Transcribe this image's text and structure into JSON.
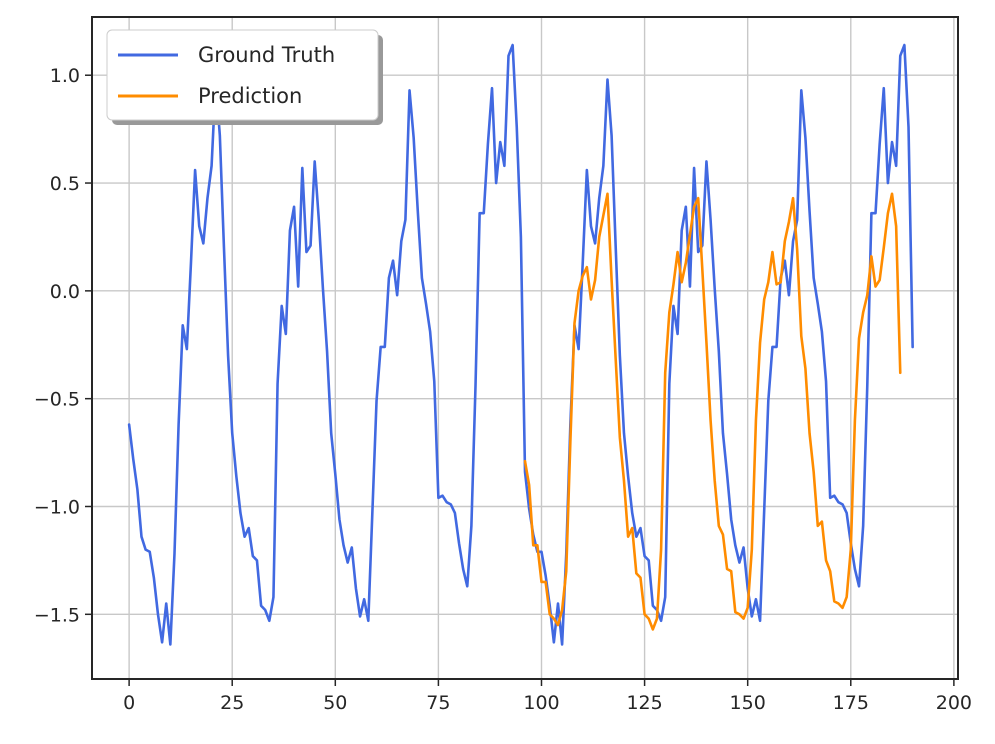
{
  "chart_data": {
    "type": "line",
    "title": "",
    "xlabel": "",
    "ylabel": "",
    "xlim": [
      -9,
      201
    ],
    "ylim": [
      -1.8,
      1.27
    ],
    "grid": true,
    "legend_position": "top-left",
    "x_ticks": [
      0,
      25,
      50,
      75,
      100,
      125,
      150,
      175,
      200
    ],
    "x_tick_labels": [
      "0",
      "25",
      "50",
      "75",
      "100",
      "125",
      "150",
      "175",
      "200"
    ],
    "y_ticks": [
      -1.5,
      -1.0,
      -0.5,
      0.0,
      0.5,
      1.0
    ],
    "y_tick_labels": [
      "−1.5",
      "−1.0",
      "−0.5",
      "0.0",
      "0.5",
      "1.0"
    ],
    "series": [
      {
        "name": "Ground Truth",
        "color": "#4169e1",
        "x_start": 0,
        "values": [
          -0.62,
          -0.78,
          -0.92,
          -1.14,
          -1.2,
          -1.21,
          -1.33,
          -1.5,
          -1.63,
          -1.45,
          -1.64,
          -1.22,
          -0.62,
          -0.16,
          -0.27,
          0.13,
          0.56,
          0.3,
          0.22,
          0.43,
          0.58,
          0.98,
          0.72,
          0.2,
          -0.3,
          -0.66,
          -0.86,
          -1.03,
          -1.14,
          -1.1,
          -1.23,
          -1.25,
          -1.46,
          -1.48,
          -1.53,
          -1.42,
          -0.43,
          -0.07,
          -0.2,
          0.28,
          0.39,
          0.02,
          0.57,
          0.18,
          0.21,
          0.6,
          0.33,
          0.01,
          -0.28,
          -0.66,
          -0.85,
          -1.06,
          -1.18,
          -1.26,
          -1.19,
          -1.38,
          -1.51,
          -1.43,
          -1.53,
          -1.02,
          -0.51,
          -0.26,
          -0.26,
          0.06,
          0.14,
          -0.02,
          0.23,
          0.33,
          0.93,
          0.71,
          0.37,
          0.06,
          -0.06,
          -0.19,
          -0.42,
          -0.96,
          -0.95,
          -0.98,
          -0.99,
          -1.03,
          -1.17,
          -1.29,
          -1.37,
          -1.09,
          -0.44,
          0.36,
          0.36,
          0.68,
          0.94,
          0.5,
          0.69,
          0.58,
          1.09,
          1.14,
          0.76,
          0.25,
          -0.84,
          -1.01,
          -1.13,
          -1.21,
          -1.21,
          -1.32,
          -1.46,
          -1.63,
          -1.45,
          -1.64,
          -1.22,
          -0.62,
          -0.16,
          -0.27,
          0.13,
          0.56,
          0.3,
          0.22,
          0.43,
          0.58,
          0.98,
          0.72,
          0.2,
          -0.3,
          -0.66,
          -0.86,
          -1.03,
          -1.14,
          -1.1,
          -1.23,
          -1.25,
          -1.46,
          -1.48,
          -1.53,
          -1.42,
          -0.43,
          -0.07,
          -0.2,
          0.28,
          0.39,
          0.02,
          0.57,
          0.18,
          0.21,
          0.6,
          0.33,
          0.01,
          -0.28,
          -0.66,
          -0.85,
          -1.06,
          -1.18,
          -1.26,
          -1.19,
          -1.38,
          -1.51,
          -1.43,
          -1.53,
          -1.02,
          -0.51,
          -0.26,
          -0.26,
          0.06,
          0.14,
          -0.02,
          0.23,
          0.33,
          0.93,
          0.71,
          0.37,
          0.06,
          -0.06,
          -0.19,
          -0.42,
          -0.96,
          -0.95,
          -0.98,
          -0.99,
          -1.03,
          -1.17,
          -1.29,
          -1.37,
          -1.09,
          -0.44,
          0.36,
          0.36,
          0.68,
          0.94,
          0.5,
          0.69,
          0.58,
          1.09,
          1.14,
          0.76,
          -0.26
        ]
      },
      {
        "name": "Prediction",
        "color": "#ff8c00",
        "x_start": 96,
        "values": [
          -0.79,
          -0.9,
          -1.18,
          -1.18,
          -1.35,
          -1.35,
          -1.5,
          -1.52,
          -1.55,
          -1.48,
          -1.3,
          -0.7,
          -0.15,
          0.0,
          0.07,
          0.11,
          -0.04,
          0.05,
          0.25,
          0.35,
          0.45,
          0.05,
          -0.32,
          -0.68,
          -0.88,
          -1.14,
          -1.1,
          -1.31,
          -1.33,
          -1.5,
          -1.52,
          -1.57,
          -1.52,
          -1.2,
          -0.38,
          -0.1,
          0.03,
          0.18,
          0.04,
          0.13,
          0.26,
          0.39,
          0.43,
          0.1,
          -0.24,
          -0.6,
          -0.88,
          -1.09,
          -1.13,
          -1.29,
          -1.3,
          -1.49,
          -1.5,
          -1.52,
          -1.47,
          -1.2,
          -0.6,
          -0.24,
          -0.04,
          0.04,
          0.18,
          0.03,
          0.04,
          0.23,
          0.32,
          0.43,
          0.19,
          -0.21,
          -0.36,
          -0.66,
          -0.84,
          -1.09,
          -1.07,
          -1.25,
          -1.3,
          -1.44,
          -1.45,
          -1.47,
          -1.42,
          -1.2,
          -0.6,
          -0.22,
          -0.1,
          -0.02,
          0.16,
          0.02,
          0.05,
          0.2,
          0.36,
          0.45,
          0.3,
          -0.38
        ]
      }
    ]
  }
}
